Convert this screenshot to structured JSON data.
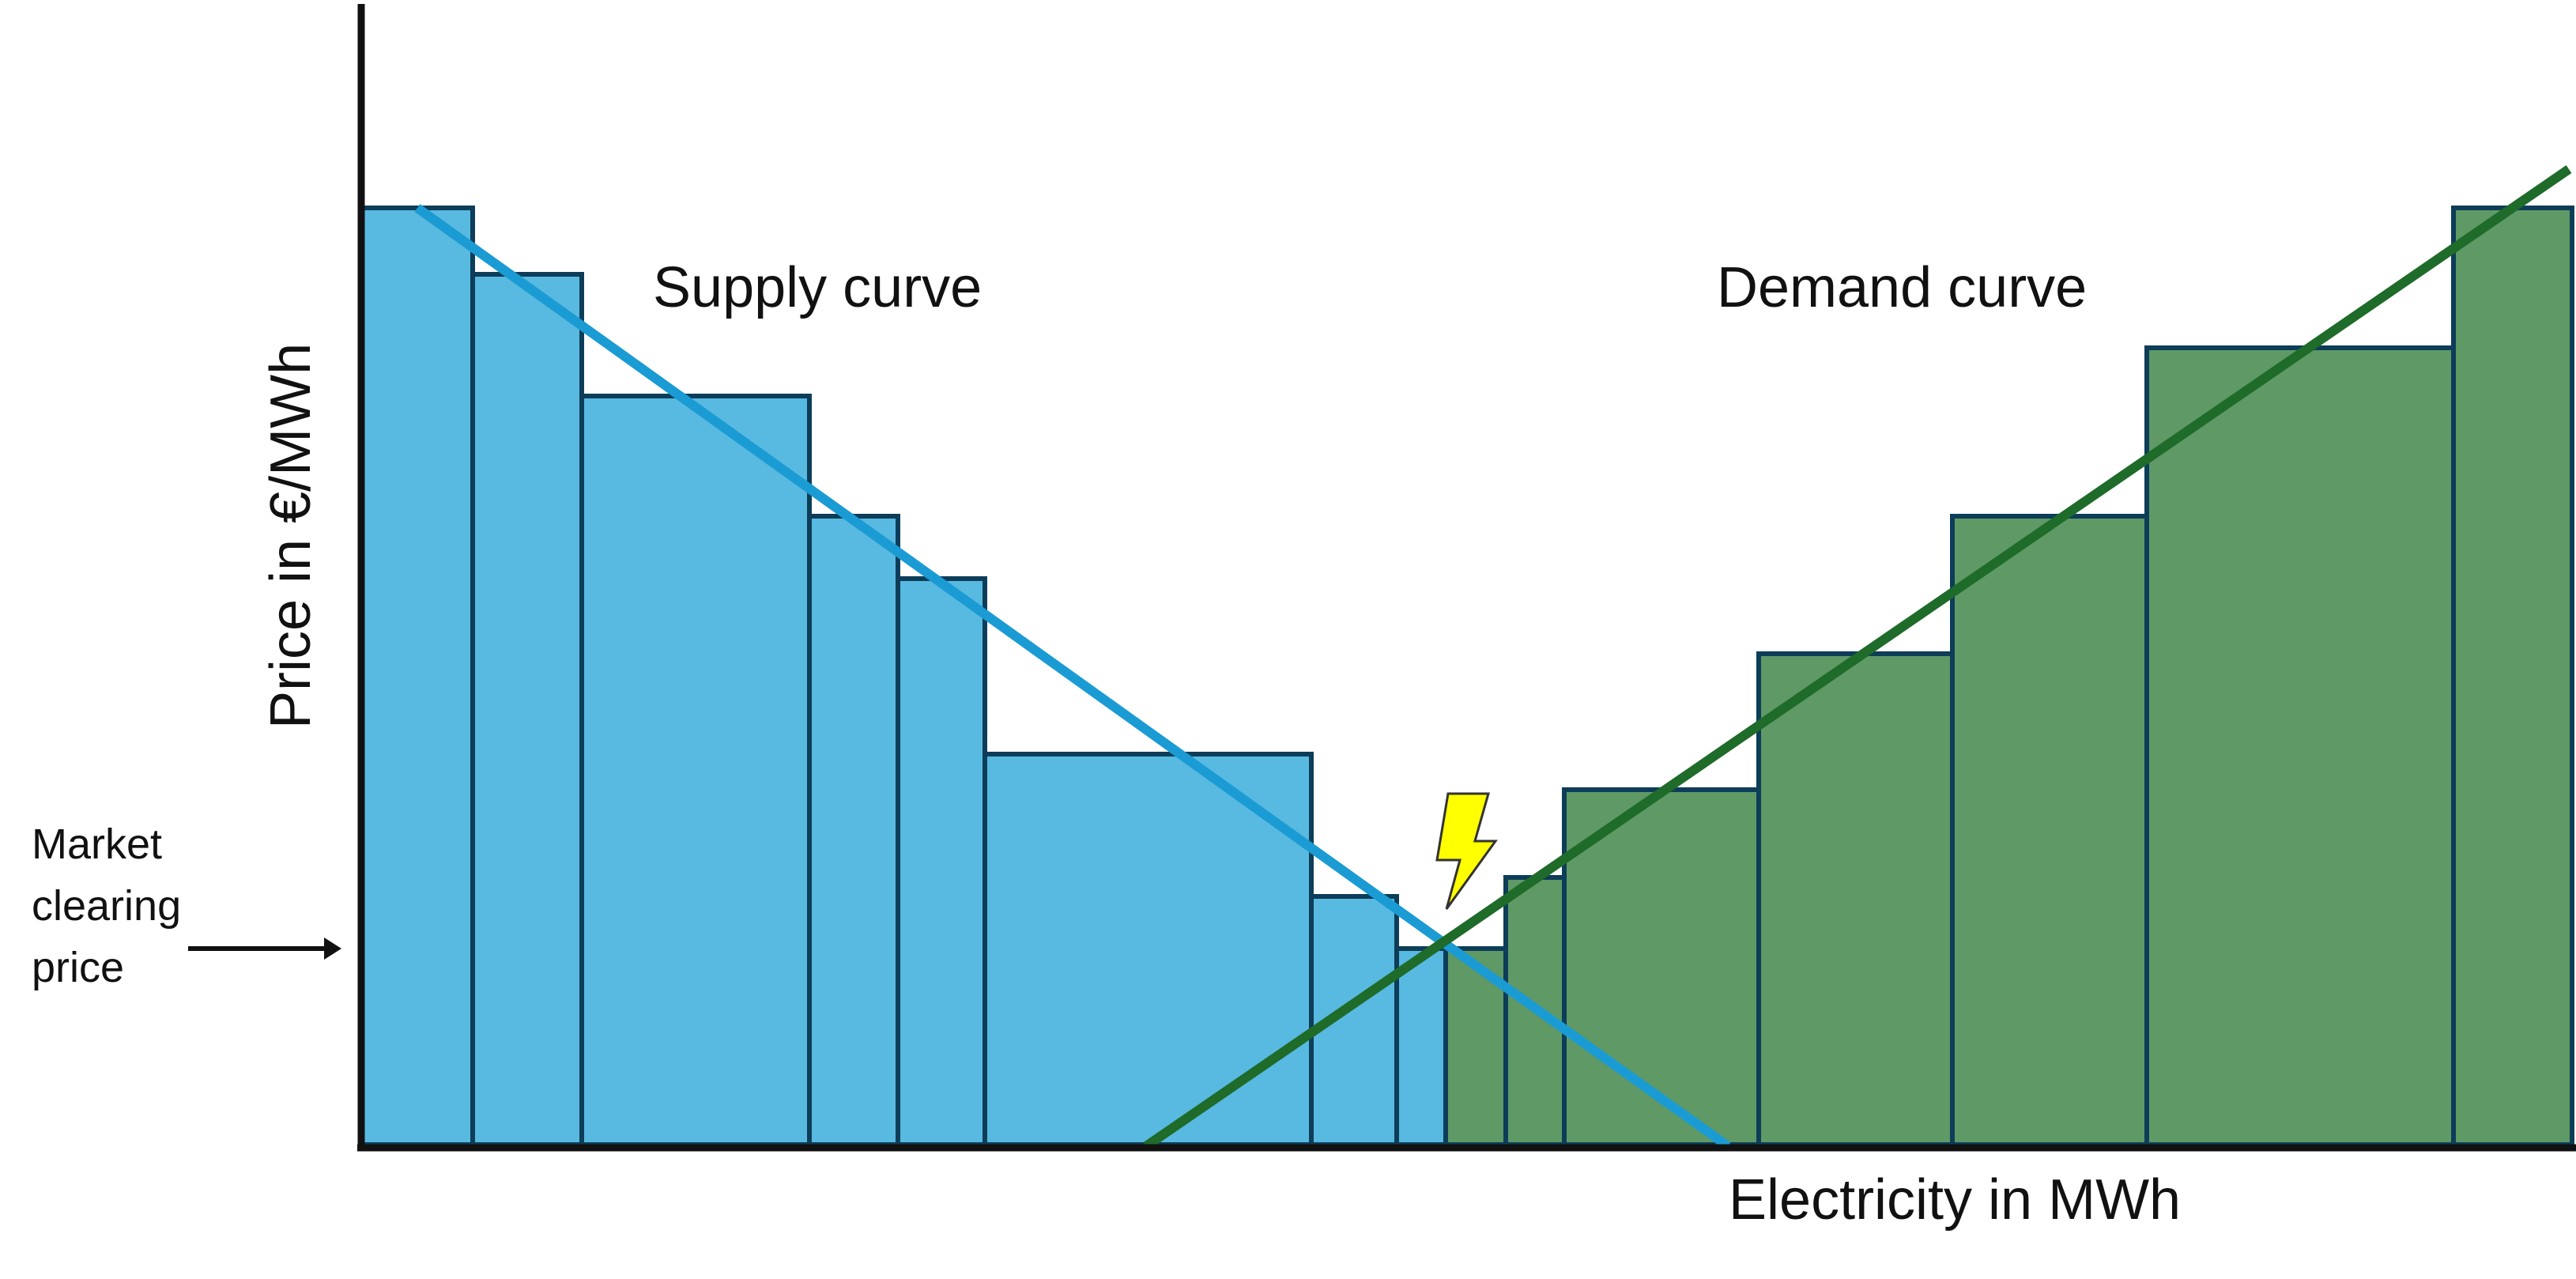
{
  "labels": {
    "supply": "Supply curve",
    "demand": "Demand curve",
    "y_axis": "Price in €/MWh",
    "x_axis": "Electricity in MWh",
    "market_line1": "Market",
    "market_line2": "clearing",
    "market_line3": "price"
  },
  "colors": {
    "supply_fill": "#58b9e1",
    "supply_line": "#1b9bd3",
    "demand_fill": "#5f9966",
    "demand_line": "#1e6b2a",
    "bar_stroke": "#0d3d58",
    "axis": "#111111",
    "lightning": "#ffff00"
  },
  "icons": {
    "lightning": "lightning-bolt-icon",
    "arrow": "arrow-right-icon"
  }
}
